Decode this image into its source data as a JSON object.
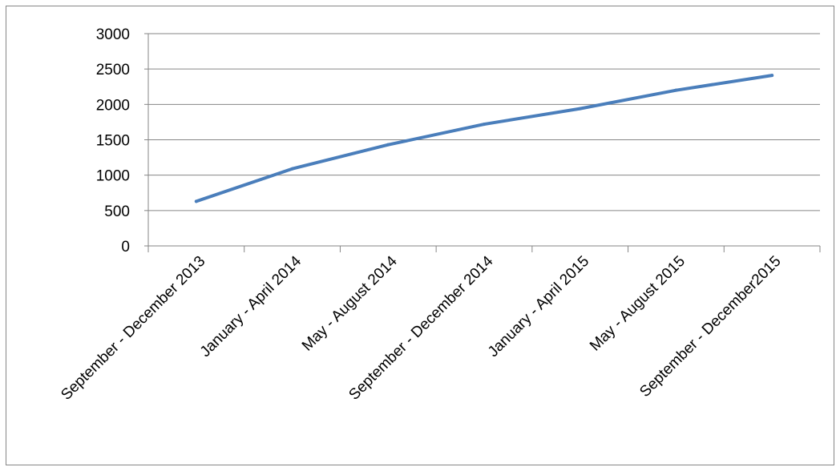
{
  "chart_data": {
    "type": "line",
    "title": "",
    "xlabel": "",
    "ylabel": "",
    "categories": [
      "September - December 2013",
      "January  - April 2014",
      "May - August 2014",
      "September  - December 2014",
      "January - April 2015",
      "May - August 2015",
      "September  - December2015"
    ],
    "series": [
      {
        "values": [
          630,
          1090,
          1430,
          1720,
          1940,
          2200,
          2410
        ],
        "color": "#4a7ebb"
      }
    ],
    "ylim": [
      0,
      3000
    ],
    "yticks": [
      "0",
      "500",
      "1000",
      "1500",
      "2000",
      "2500",
      "3000"
    ],
    "grid": "horizontal",
    "legend": "none"
  }
}
